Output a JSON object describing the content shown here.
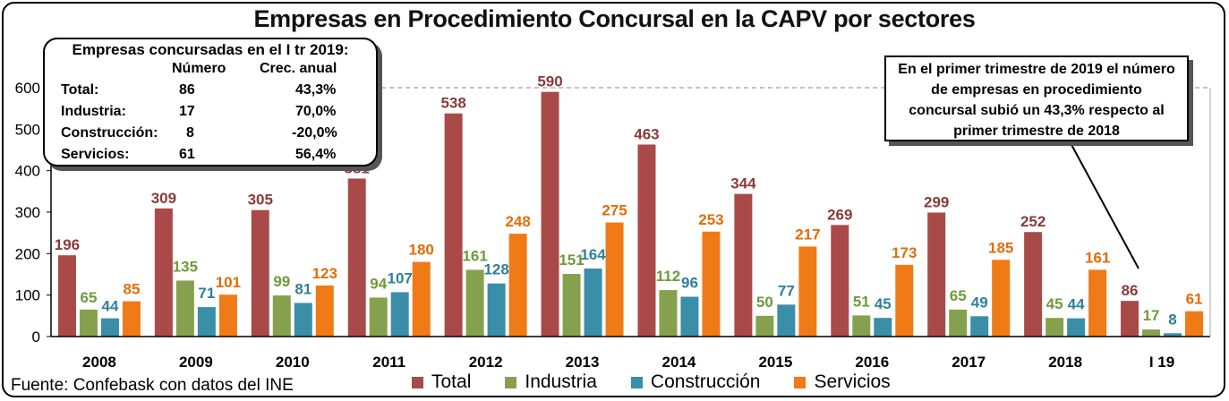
{
  "chart_data": {
    "type": "bar",
    "title": "Empresas en Procedimiento Concursal en la CAPV por sectores",
    "categories": [
      "2008",
      "2009",
      "2010",
      "2011",
      "2012",
      "2013",
      "2014",
      "2015",
      "2016",
      "2017",
      "2018",
      "I 19"
    ],
    "series": [
      {
        "name": "Total",
        "color": "#a94a48",
        "label_color": "#8b3a3a",
        "values": [
          196,
          309,
          305,
          381,
          538,
          590,
          463,
          344,
          269,
          299,
          252,
          86
        ]
      },
      {
        "name": "Industria",
        "color": "#86a14e",
        "label_color": "#6f9a3c",
        "values": [
          65,
          135,
          99,
          94,
          161,
          151,
          112,
          50,
          51,
          65,
          45,
          17
        ]
      },
      {
        "name": "Construcción",
        "color": "#3a8ea8",
        "label_color": "#2f7f9c",
        "values": [
          44,
          71,
          81,
          107,
          128,
          164,
          96,
          77,
          45,
          49,
          44,
          8
        ]
      },
      {
        "name": "Servicios",
        "color": "#f07a16",
        "label_color": "#e36c0a",
        "values": [
          85,
          101,
          123,
          180,
          248,
          275,
          253,
          217,
          173,
          185,
          161,
          61
        ]
      }
    ],
    "yticks": [
      "0",
      "100",
      "200",
      "300",
      "400",
      "500",
      "600"
    ],
    "ylim": [
      0,
      600
    ],
    "grid": "dashed horizontal at 600",
    "legend_position": "bottom"
  },
  "info_box": {
    "header": "Empresas concursadas en el I tr 2019:",
    "col_numero": "Número",
    "col_crec": "Crec. anual",
    "rows": [
      {
        "label": "Total:",
        "numero": "86",
        "crec": "43,3%"
      },
      {
        "label": "Industria:",
        "numero": "17",
        "crec": "70,0%"
      },
      {
        "label": "Construcción:",
        "numero": "8",
        "crec": "-20,0%"
      },
      {
        "label": "Servicios:",
        "numero": "61",
        "crec": "56,4%"
      }
    ]
  },
  "callout": {
    "lines": [
      "En el primer trimestre de 2019 el número",
      "de empresas en procedimiento",
      "concursal subió un 43,3% respecto al",
      "primer trimestre de 2018"
    ]
  },
  "source": "Fuente: Confebask con datos del INE"
}
